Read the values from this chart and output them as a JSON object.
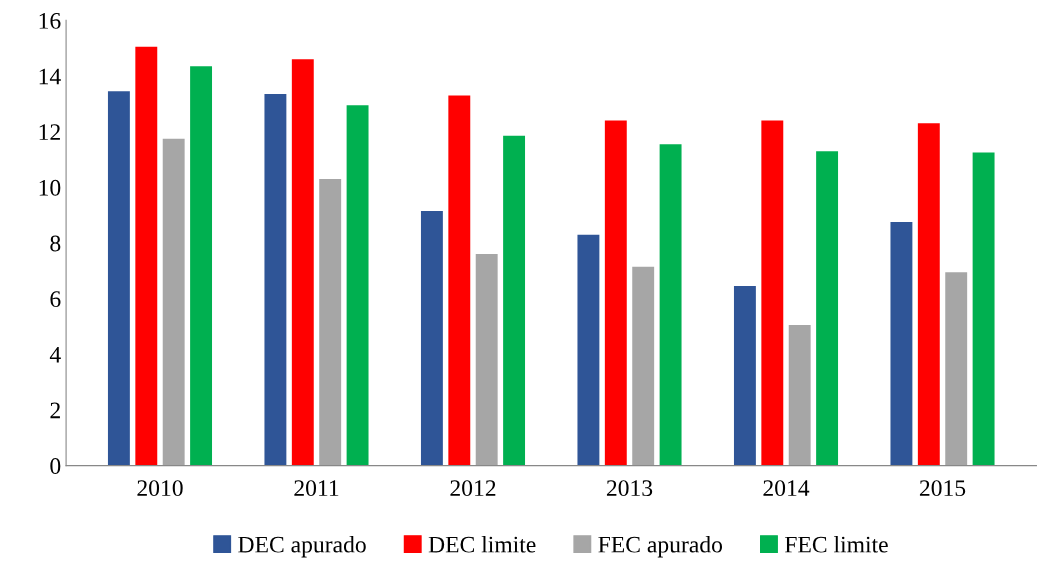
{
  "chart_data": {
    "type": "bar",
    "categories": [
      "2010",
      "2011",
      "2012",
      "2013",
      "2014",
      "2015"
    ],
    "series": [
      {
        "name": "DEC apurado",
        "color": "#2f5597",
        "values": [
          13.45,
          13.35,
          9.15,
          8.3,
          6.45,
          8.75
        ]
      },
      {
        "name": "DEC limite",
        "color": "#ff0000",
        "values": [
          15.05,
          14.6,
          13.3,
          12.4,
          12.4,
          12.3
        ]
      },
      {
        "name": "FEC apurado",
        "color": "#a6a6a6",
        "values": [
          11.75,
          10.3,
          7.6,
          7.15,
          5.05,
          6.95
        ]
      },
      {
        "name": "FEC limite",
        "color": "#00b050",
        "values": [
          14.35,
          12.95,
          11.85,
          11.55,
          11.3,
          11.25
        ]
      }
    ],
    "ylim": [
      0,
      16
    ],
    "yticks": [
      0,
      2,
      4,
      6,
      8,
      10,
      12,
      14,
      16
    ],
    "grid": false,
    "legend": "bottom"
  }
}
